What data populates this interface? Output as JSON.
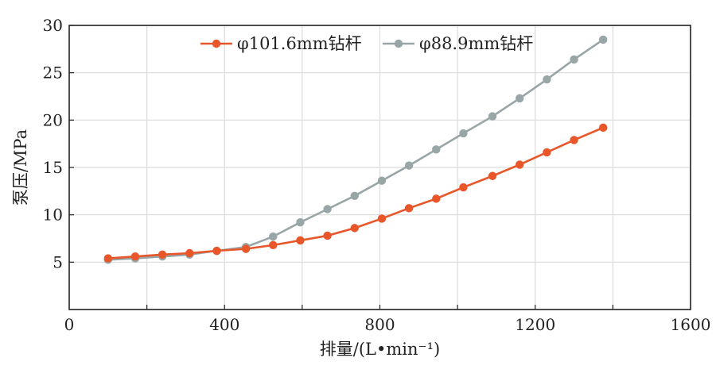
{
  "chart_data": {
    "type": "line",
    "title": "",
    "xlabel": "排量/(L•min⁻¹)",
    "ylabel": "泵压/MPa",
    "xlim": [
      0,
      1600
    ],
    "ylim": [
      0,
      30
    ],
    "xticks": [
      0,
      400,
      800,
      1200,
      1600
    ],
    "yticks": [
      5,
      10,
      15,
      20,
      25,
      30
    ],
    "grid": true,
    "legend_position": "top-center",
    "series": [
      {
        "name": "φ101.6mm钻杆",
        "color": "#e8562a",
        "x": [
          100,
          170,
          240,
          310,
          380,
          455,
          525,
          595,
          665,
          735,
          805,
          875,
          945,
          1015,
          1090,
          1160,
          1230,
          1300,
          1375
        ],
        "y": [
          5.4,
          5.6,
          5.8,
          5.95,
          6.2,
          6.4,
          6.8,
          7.3,
          7.8,
          8.6,
          9.6,
          10.7,
          11.7,
          12.9,
          14.1,
          15.3,
          16.6,
          17.9,
          19.2
        ]
      },
      {
        "name": "φ88.9mm钻杆",
        "color": "#98a6a8",
        "x": [
          100,
          170,
          240,
          310,
          380,
          455,
          525,
          595,
          665,
          735,
          805,
          875,
          945,
          1015,
          1090,
          1160,
          1230,
          1300,
          1375
        ],
        "y": [
          5.25,
          5.4,
          5.6,
          5.8,
          6.2,
          6.6,
          7.7,
          9.2,
          10.6,
          12.0,
          13.6,
          15.2,
          16.9,
          18.6,
          20.4,
          22.3,
          24.3,
          26.4,
          28.5
        ]
      }
    ]
  }
}
